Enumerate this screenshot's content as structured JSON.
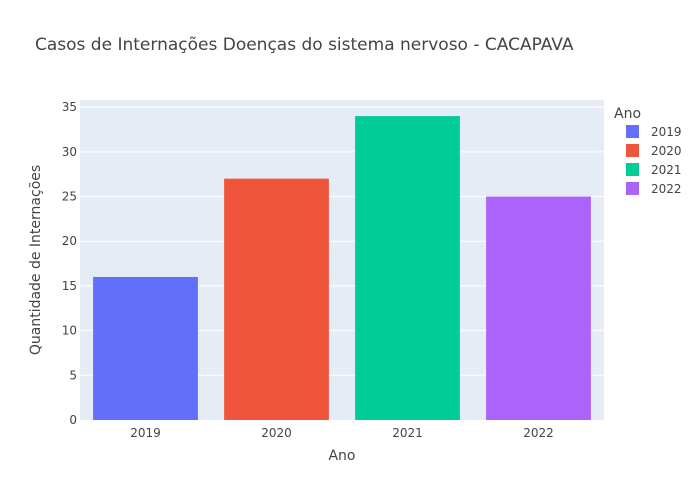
{
  "chart_data": {
    "type": "bar",
    "title": "Casos de Internações Doenças do sistema nervoso - CACAPAVA",
    "xlabel": "Ano",
    "ylabel": "Quantidade de Internações",
    "categories": [
      "2019",
      "2020",
      "2021",
      "2022"
    ],
    "series": [
      {
        "name": "2019",
        "category": "2019",
        "value": 16,
        "color": "#636efa"
      },
      {
        "name": "2020",
        "category": "2020",
        "value": 27,
        "color": "#EF553B"
      },
      {
        "name": "2021",
        "category": "2021",
        "value": 34,
        "color": "#00cc96"
      },
      {
        "name": "2022",
        "category": "2022",
        "value": 25,
        "color": "#ab63fa"
      }
    ],
    "ylim": [
      0,
      35.8
    ],
    "yticks": [
      0,
      5,
      10,
      15,
      20,
      25,
      30,
      35
    ],
    "grid": true,
    "legend": {
      "title": "Ano",
      "placement": "top-right"
    },
    "plot_background": "#E5ECF6"
  }
}
